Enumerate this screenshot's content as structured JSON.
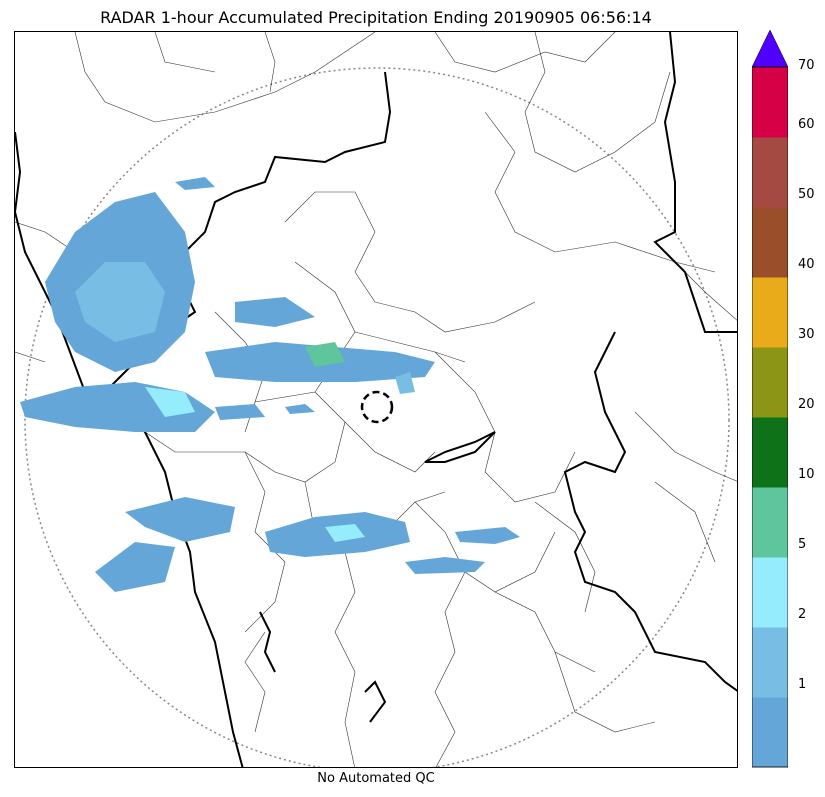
{
  "title": "RADAR 1-hour Accumulated Precipitation Ending 20190905 06:56:14",
  "footer": "No Automated QC",
  "colorbar": {
    "levels": [
      {
        "label": "",
        "color": "#64a6d8"
      },
      {
        "label": "1",
        "color": "#78bde4"
      },
      {
        "label": "2",
        "color": "#94ecfd"
      },
      {
        "label": "5",
        "color": "#5ec59d"
      },
      {
        "label": "10",
        "color": "#0e7219"
      },
      {
        "label": "20",
        "color": "#8c9516"
      },
      {
        "label": "30",
        "color": "#eaab1b"
      },
      {
        "label": "40",
        "color": "#9a4e29"
      },
      {
        "label": "50",
        "color": "#a44a42"
      },
      {
        "label": "60",
        "color": "#d60047"
      }
    ],
    "top_label": "70",
    "extend_color": "#5000ff"
  }
}
